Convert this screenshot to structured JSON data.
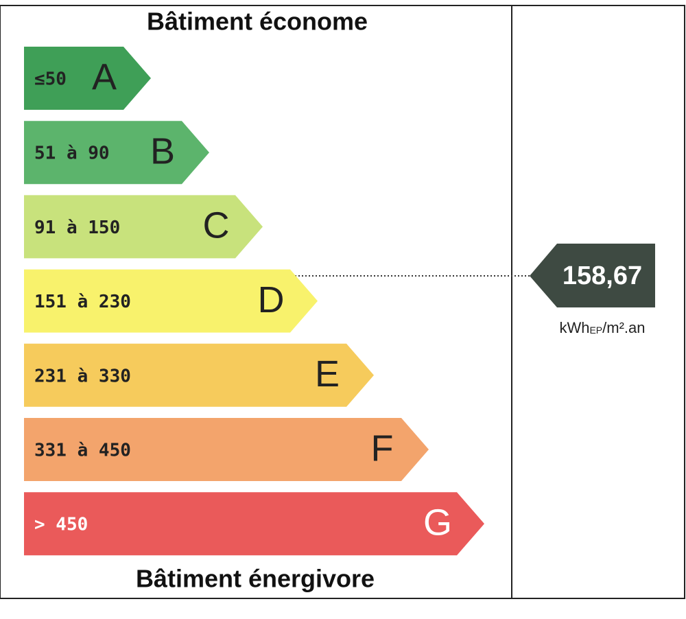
{
  "header": {
    "title": "Bâtiment économe"
  },
  "grades": [
    {
      "range": "≤50",
      "letter": "A",
      "color": "#3f9f57"
    },
    {
      "range": "51 à 90",
      "letter": "B",
      "color": "#5cb46c"
    },
    {
      "range": "91 à 150",
      "letter": "C",
      "color": "#c8e27c"
    },
    {
      "range": "151 à 230",
      "letter": "D",
      "color": "#f8f26c"
    },
    {
      "range": "231 à 330",
      "letter": "E",
      "color": "#f6cb5c"
    },
    {
      "range": "331 à 450",
      "letter": "F",
      "color": "#f3a46c"
    },
    {
      "range": "> 450",
      "letter": "G",
      "color": "#ea5a5a"
    }
  ],
  "indicator": {
    "value": "158,67",
    "unit_main": "kWh",
    "unit_sub": "EP",
    "unit_rest": "/m².an"
  },
  "footer": {
    "title": "Bâtiment énergivore"
  }
}
